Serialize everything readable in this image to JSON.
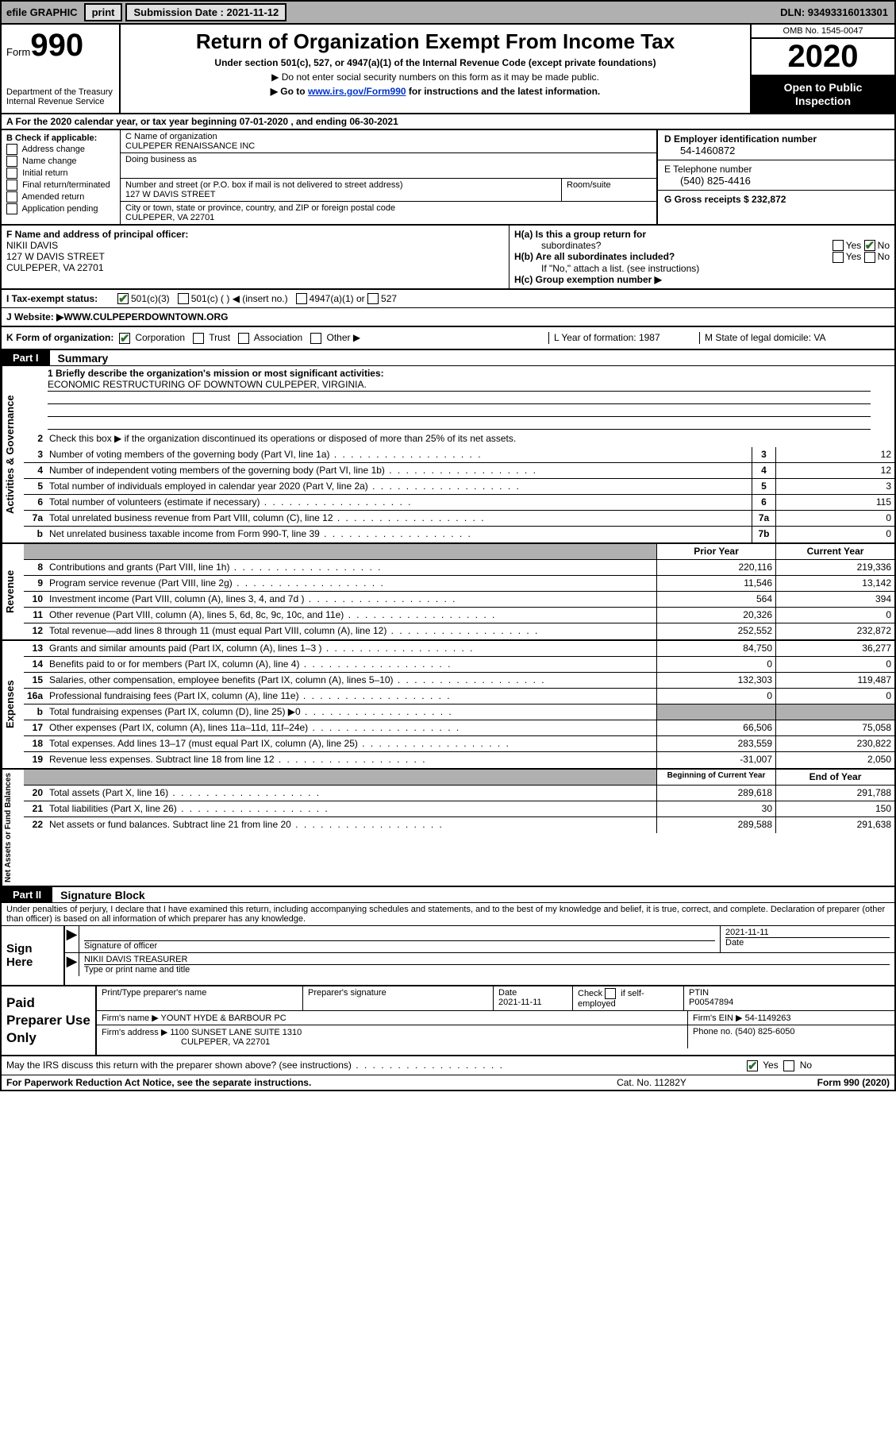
{
  "topbar": {
    "efile": "efile GRAPHIC",
    "print": "print",
    "sub_label": "Submission Date : 2021-11-12",
    "dln": "DLN: 93493316013301"
  },
  "header": {
    "form_word": "Form",
    "form_num": "990",
    "dept1": "Department of the Treasury",
    "dept2": "Internal Revenue Service",
    "title": "Return of Organization Exempt From Income Tax",
    "subtitle": "Under section 501(c), 527, or 4947(a)(1) of the Internal Revenue Code (except private foundations)",
    "note1": "▶ Do not enter social security numbers on this form as it may be made public.",
    "note2_pre": "▶ Go to ",
    "note2_link": "www.irs.gov/Form990",
    "note2_post": " for instructions and the latest information.",
    "omb": "OMB No. 1545-0047",
    "year": "2020",
    "open1": "Open to Public",
    "open2": "Inspection"
  },
  "rowA": "A For the 2020 calendar year, or tax year beginning 07-01-2020   , and ending 06-30-2021",
  "entity": {
    "b_label": "B Check if applicable:",
    "b_opts": [
      "Address change",
      "Name change",
      "Initial return",
      "Final return/terminated",
      "Amended return",
      "Application pending"
    ],
    "c_name_lbl": "C Name of organization",
    "c_name": "CULPEPER RENAISSANCE INC",
    "dba_lbl": "Doing business as",
    "dba": "",
    "street_lbl": "Number and street (or P.O. box if mail is not delivered to street address)",
    "room_lbl": "Room/suite",
    "street": "127 W DAVIS STREET",
    "city_lbl": "City or town, state or province, country, and ZIP or foreign postal code",
    "city": "CULPEPER, VA  22701",
    "d_lbl": "D Employer identification number",
    "d_val": "54-1460872",
    "e_lbl": "E Telephone number",
    "e_val": "(540) 825-4416",
    "g_lbl": "G Gross receipts $ 232,872"
  },
  "fh": {
    "f_lbl": "F  Name and address of principal officer:",
    "f_name": "NIKII DAVIS",
    "f_addr1": "127 W DAVIS STREET",
    "f_addr2": "CULPEPER, VA  22701",
    "ha_lbl": "H(a)  Is this a group return for",
    "ha_lbl2": "subordinates?",
    "hb_lbl": "H(b)  Are all subordinates included?",
    "hb_note": "If \"No,\" attach a list. (see instructions)",
    "hc_lbl": "H(c)  Group exemption number ▶",
    "yes": "Yes",
    "no": "No"
  },
  "rowI": {
    "lbl": "I   Tax-exempt status:",
    "o1": "501(c)(3)",
    "o2": "501(c) (  ) ◀ (insert no.)",
    "o3": "4947(a)(1) or",
    "o4": "527"
  },
  "rowJ": {
    "lbl": "J   Website: ▶",
    "val": "  WWW.CULPEPERDOWNTOWN.ORG"
  },
  "rowK": {
    "k_lbl": "K Form of organization:",
    "k_opts": [
      "Corporation",
      "Trust",
      "Association",
      "Other ▶"
    ],
    "l": "L Year of formation: 1987",
    "m": "M State of legal domicile: VA"
  },
  "part1": {
    "tab": "Part I",
    "title": "Summary"
  },
  "side": {
    "ag": "Activities & Governance",
    "rev": "Revenue",
    "exp": "Expenses",
    "na": "Net Assets or Fund Balances"
  },
  "mission": {
    "lbl": "1  Briefly describe the organization's mission or most significant activities:",
    "val": "ECONOMIC RESTRUCTURING OF DOWNTOWN CULPEPER, VIRGINIA."
  },
  "line2": "Check this box ▶      if the organization discontinued its operations or disposed of more than 25% of its net assets.",
  "lines_single": [
    {
      "no": "3",
      "desc": "Number of voting members of the governing body (Part VI, line 1a)",
      "box": "3",
      "v": "12"
    },
    {
      "no": "4",
      "desc": "Number of independent voting members of the governing body (Part VI, line 1b)",
      "box": "4",
      "v": "12"
    },
    {
      "no": "5",
      "desc": "Total number of individuals employed in calendar year 2020 (Part V, line 2a)",
      "box": "5",
      "v": "3"
    },
    {
      "no": "6",
      "desc": "Total number of volunteers (estimate if necessary)",
      "box": "6",
      "v": "115"
    },
    {
      "no": "7a",
      "desc": "Total unrelated business revenue from Part VIII, column (C), line 12",
      "box": "7a",
      "v": "0"
    },
    {
      "no": "b",
      "desc": "Net unrelated business taxable income from Form 990-T, line 39",
      "box": "7b",
      "v": "0"
    }
  ],
  "hdr_two": {
    "v1": "Prior Year",
    "v2": "Current Year"
  },
  "lines_two": [
    {
      "section": "rev",
      "no": "8",
      "desc": "Contributions and grants (Part VIII, line 1h)",
      "v1": "220,116",
      "v2": "219,336"
    },
    {
      "section": "rev",
      "no": "9",
      "desc": "Program service revenue (Part VIII, line 2g)",
      "v1": "11,546",
      "v2": "13,142"
    },
    {
      "section": "rev",
      "no": "10",
      "desc": "Investment income (Part VIII, column (A), lines 3, 4, and 7d )",
      "v1": "564",
      "v2": "394"
    },
    {
      "section": "rev",
      "no": "11",
      "desc": "Other revenue (Part VIII, column (A), lines 5, 6d, 8c, 9c, 10c, and 11e)",
      "v1": "20,326",
      "v2": "0"
    },
    {
      "section": "rev",
      "no": "12",
      "desc": "Total revenue—add lines 8 through 11 (must equal Part VIII, column (A), line 12)",
      "v1": "252,552",
      "v2": "232,872"
    },
    {
      "section": "exp",
      "no": "13",
      "desc": "Grants and similar amounts paid (Part IX, column (A), lines 1–3 )",
      "v1": "84,750",
      "v2": "36,277"
    },
    {
      "section": "exp",
      "no": "14",
      "desc": "Benefits paid to or for members (Part IX, column (A), line 4)",
      "v1": "0",
      "v2": "0"
    },
    {
      "section": "exp",
      "no": "15",
      "desc": "Salaries, other compensation, employee benefits (Part IX, column (A), lines 5–10)",
      "v1": "132,303",
      "v2": "119,487"
    },
    {
      "section": "exp",
      "no": "16a",
      "desc": "Professional fundraising fees (Part IX, column (A), line 11e)",
      "v1": "0",
      "v2": "0"
    },
    {
      "section": "exp",
      "no": "b",
      "desc": "Total fundraising expenses (Part IX, column (D), line 25) ▶0",
      "v1": "",
      "v2": "",
      "shade": true
    },
    {
      "section": "exp",
      "no": "17",
      "desc": "Other expenses (Part IX, column (A), lines 11a–11d, 11f–24e)",
      "v1": "66,506",
      "v2": "75,058"
    },
    {
      "section": "exp",
      "no": "18",
      "desc": "Total expenses. Add lines 13–17 (must equal Part IX, column (A), line 25)",
      "v1": "283,559",
      "v2": "230,822"
    },
    {
      "section": "exp",
      "no": "19",
      "desc": "Revenue less expenses. Subtract line 18 from line 12",
      "v1": "-31,007",
      "v2": "2,050"
    }
  ],
  "hdr_na": {
    "v1": "Beginning of Current Year",
    "v2": "End of Year"
  },
  "lines_na": [
    {
      "no": "20",
      "desc": "Total assets (Part X, line 16)",
      "v1": "289,618",
      "v2": "291,788"
    },
    {
      "no": "21",
      "desc": "Total liabilities (Part X, line 26)",
      "v1": "30",
      "v2": "150"
    },
    {
      "no": "22",
      "desc": "Net assets or fund balances. Subtract line 21 from line 20",
      "v1": "289,588",
      "v2": "291,638"
    }
  ],
  "part2": {
    "tab": "Part II",
    "title": "Signature Block"
  },
  "sig_note": "Under penalties of perjury, I declare that I have examined this return, including accompanying schedules and statements, and to the best of my knowledge and belief, it is true, correct, and complete. Declaration of preparer (other than officer) is based on all information of which preparer has any knowledge.",
  "sig": {
    "here": "Sign Here",
    "off_lbl": "Signature of officer",
    "date_lbl": "Date",
    "date_val": "2021-11-11",
    "name": "NIKII DAVIS  TREASURER",
    "name_lbl": "Type or print name and title"
  },
  "prep": {
    "lbl": "Paid Preparer Use Only",
    "h1": "Print/Type preparer's name",
    "h2": "Preparer's signature",
    "h3": "Date",
    "h3v": "2021-11-11",
    "h4": "Check       if self-employed",
    "h5": "PTIN",
    "h5v": "P00547894",
    "firm_lbl": "Firm's name     ▶",
    "firm": "YOUNT HYDE & BARBOUR PC",
    "ein_lbl": "Firm's EIN ▶",
    "ein": "54-1149263",
    "addr_lbl": "Firm's address ▶",
    "addr1": "1100 SUNSET LANE SUITE 1310",
    "addr2": "CULPEPER, VA  22701",
    "phone_lbl": "Phone no.",
    "phone": "(540) 825-6050"
  },
  "discuss": {
    "q": "May the IRS discuss this return with the preparer shown above? (see instructions)",
    "yes": "Yes",
    "no": "No"
  },
  "footer": {
    "l": "For Paperwork Reduction Act Notice, see the separate instructions.",
    "c": "Cat. No. 11282Y",
    "r": "Form 990 (2020)"
  }
}
